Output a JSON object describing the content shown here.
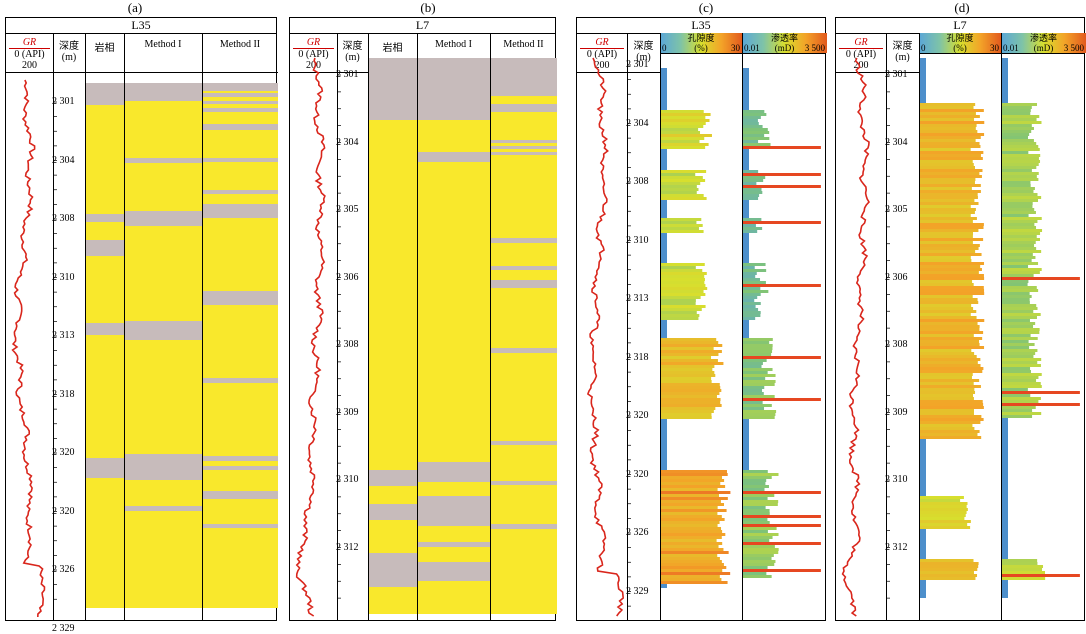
{
  "panel_labels": [
    "(a)",
    "(b)",
    "(c)",
    "(d)"
  ],
  "gr": {
    "name": "GR",
    "scale": "0 (API) 200"
  },
  "depth_header": {
    "l1": "深度",
    "l2": "(m)"
  },
  "lithofacies_header": "岩相",
  "method1": "Method I",
  "method2": "Method II",
  "panel_a": {
    "well": "L35",
    "depth_ticks": [
      "2 301",
      "2 304",
      "2 308",
      "2 310",
      "2 313",
      "2 318",
      "2 320",
      "2 320",
      "2 326",
      "2 329"
    ]
  },
  "panel_b": {
    "well": "L7",
    "depth_ticks": [
      "2 301",
      "2 304",
      "2 305",
      "2 306",
      "2 308",
      "2 309",
      "2 310",
      "2 312"
    ]
  },
  "panel_c": {
    "well": "L35",
    "depth_ticks": [
      "2 301",
      "2 304",
      "2 308",
      "2 310",
      "2 313",
      "2 318",
      "2 320",
      "2 320",
      "2 326",
      "2 329"
    ]
  },
  "panel_d": {
    "well": "L7",
    "depth_ticks": [
      "2 301",
      "2 304",
      "2 305",
      "2 306",
      "2 308",
      "2 309",
      "2 310",
      "2 312"
    ]
  },
  "porosity": {
    "name": "孔隙度",
    "unit": "(%)",
    "min": "0",
    "max": "30"
  },
  "permeability": {
    "name": "渗透率",
    "unit": "(mD)",
    "min": "0.01",
    "max": "3 500"
  },
  "colors": {
    "sand": "#f9e82c",
    "shale": "#c7bbbb",
    "gr_curve": "#d9261c",
    "base": "#4d8fcb"
  }
}
